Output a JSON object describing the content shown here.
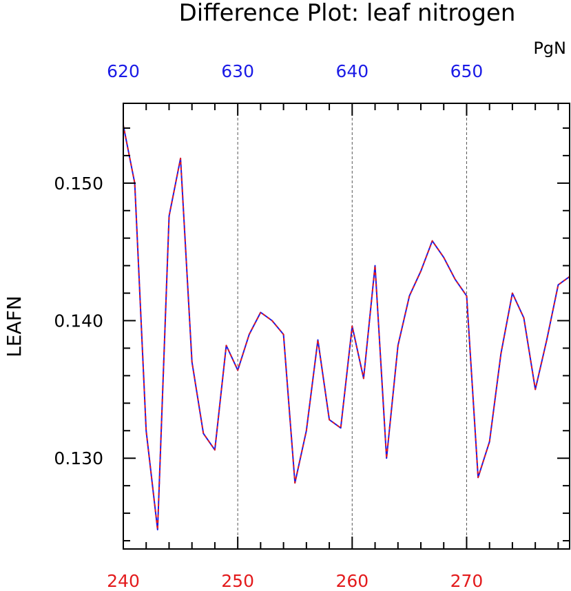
{
  "chart_data": {
    "type": "line",
    "title": "Difference Plot: leaf nitrogen",
    "xlabel": "",
    "ylabel": "LEAFN",
    "top_axis_unit": "PgN",
    "xlim": [
      240,
      279
    ],
    "ylim": [
      0.1234,
      0.1558
    ],
    "top_xlim": [
      620,
      659
    ],
    "x_ticks": [
      "240",
      "250",
      "260",
      "270"
    ],
    "x_tick_values": [
      240,
      250,
      260,
      270
    ],
    "top_ticks": [
      "620",
      "630",
      "640",
      "650"
    ],
    "top_tick_values": [
      620,
      630,
      640,
      650
    ],
    "y_ticks": [
      "0.130",
      "0.140",
      "0.150"
    ],
    "y_tick_values": [
      0.13,
      0.14,
      0.15
    ],
    "grid": "vertical dashed at major x ticks",
    "colors": {
      "bottom_axis": "#e31a1c",
      "top_axis": "#1a1ae6",
      "series_solid": "#1a1ae6",
      "series_dashed": "#e31a1c",
      "grid": "#555555"
    },
    "series": [
      {
        "x": [
          240,
          241,
          242,
          243,
          244,
          245,
          246,
          247,
          248,
          249,
          250,
          251,
          252,
          253,
          254,
          255,
          256,
          257,
          258,
          259,
          260,
          261,
          262,
          263,
          264,
          265,
          266,
          267,
          268,
          269,
          270,
          271,
          272,
          273,
          274,
          275,
          276,
          277,
          278,
          279
        ],
        "values": [
          0.1542,
          0.15,
          0.132,
          0.1248,
          0.1476,
          0.1518,
          0.137,
          0.1318,
          0.1306,
          0.1382,
          0.1364,
          0.139,
          0.1406,
          0.14,
          0.139,
          0.1282,
          0.132,
          0.1386,
          0.1328,
          0.1322,
          0.1396,
          0.1358,
          0.144,
          0.13,
          0.1382,
          0.1418,
          0.1436,
          0.1458,
          0.1446,
          0.143,
          0.1418,
          0.1286,
          0.1312,
          0.1376,
          0.142,
          0.1402,
          0.135,
          0.1386,
          0.1426,
          0.1432
        ]
      }
    ]
  }
}
